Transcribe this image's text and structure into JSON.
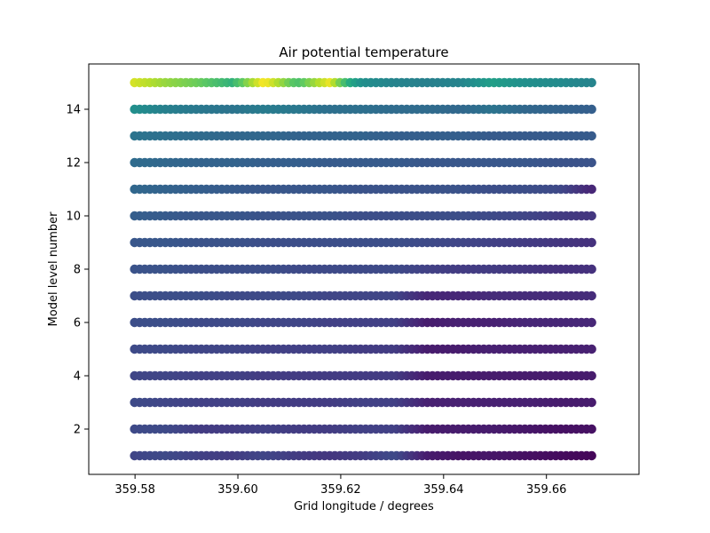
{
  "chart_data": {
    "type": "scatter",
    "title": "Air potential temperature",
    "xlabel": "Grid longitude / degrees",
    "ylabel": "Model level number",
    "xlim": [
      359.571,
      359.678
    ],
    "ylim": [
      0.3,
      15.7
    ],
    "x_ticks": [
      359.58,
      359.6,
      359.62,
      359.64,
      359.66
    ],
    "x_tick_labels": [
      "359.58",
      "359.60",
      "359.62",
      "359.64",
      "359.66"
    ],
    "y_ticks": [
      2,
      4,
      6,
      8,
      10,
      12,
      14
    ],
    "y_tick_labels": [
      "2",
      "4",
      "6",
      "8",
      "10",
      "12",
      "14"
    ],
    "grid": false,
    "colormap": "viridis",
    "x_range": [
      359.5799,
      359.6688
    ],
    "n_points_per_level": 90,
    "series": [
      {
        "level": 1,
        "x": [
          359.5799,
          359.5862,
          359.5925,
          359.5989,
          359.6052,
          359.6116,
          359.6179,
          359.6243,
          359.6306,
          359.637,
          359.6433,
          359.6497,
          359.656,
          359.6624,
          359.6688
        ],
        "color_value": [
          0.26,
          0.28,
          0.24,
          0.22,
          0.26,
          0.22,
          0.2,
          0.22,
          0.28,
          0.1,
          0.07,
          0.08,
          0.06,
          0.04,
          0.02
        ]
      },
      {
        "level": 2,
        "x": [
          359.5799,
          359.5862,
          359.5925,
          359.5989,
          359.6052,
          359.6116,
          359.6179,
          359.6243,
          359.6306,
          359.637,
          359.6433,
          359.6497,
          359.656,
          359.6624,
          359.6688
        ],
        "color_value": [
          0.28,
          0.28,
          0.22,
          0.22,
          0.24,
          0.22,
          0.22,
          0.24,
          0.24,
          0.1,
          0.1,
          0.1,
          0.08,
          0.06,
          0.06
        ]
      },
      {
        "level": 3,
        "x": [
          359.5799,
          359.5862,
          359.5925,
          359.5989,
          359.6052,
          359.6116,
          359.6179,
          359.6243,
          359.6306,
          359.637,
          359.6433,
          359.6497,
          359.656,
          359.6624,
          359.6688
        ],
        "color_value": [
          0.28,
          0.26,
          0.24,
          0.24,
          0.22,
          0.22,
          0.22,
          0.24,
          0.24,
          0.12,
          0.12,
          0.12,
          0.12,
          0.1,
          0.1
        ]
      },
      {
        "level": 4,
        "x": [
          359.5799,
          359.5862,
          359.5925,
          359.5989,
          359.6052,
          359.6116,
          359.6179,
          359.6243,
          359.6306,
          359.637,
          359.6433,
          359.6497,
          359.656,
          359.6624,
          359.6688
        ],
        "color_value": [
          0.26,
          0.26,
          0.24,
          0.24,
          0.22,
          0.22,
          0.22,
          0.22,
          0.22,
          0.1,
          0.1,
          0.1,
          0.1,
          0.1,
          0.1
        ]
      },
      {
        "level": 5,
        "x": [
          359.5799,
          359.5862,
          359.5925,
          359.5989,
          359.6052,
          359.6116,
          359.6179,
          359.6243,
          359.6306,
          359.637,
          359.6433,
          359.6497,
          359.656,
          359.6624,
          359.6688
        ],
        "color_value": [
          0.28,
          0.28,
          0.26,
          0.26,
          0.24,
          0.24,
          0.24,
          0.22,
          0.22,
          0.1,
          0.1,
          0.12,
          0.12,
          0.12,
          0.12
        ]
      },
      {
        "level": 6,
        "x": [
          359.5799,
          359.5862,
          359.5925,
          359.5989,
          359.6052,
          359.6116,
          359.6179,
          359.6243,
          359.6306,
          359.637,
          359.6433,
          359.6497,
          359.656,
          359.6624,
          359.6688
        ],
        "color_value": [
          0.3,
          0.3,
          0.28,
          0.28,
          0.26,
          0.26,
          0.24,
          0.24,
          0.24,
          0.1,
          0.12,
          0.12,
          0.14,
          0.14,
          0.14
        ]
      },
      {
        "level": 7,
        "x": [
          359.5799,
          359.5862,
          359.5925,
          359.5989,
          359.6052,
          359.6116,
          359.6179,
          359.6243,
          359.6306,
          359.637,
          359.6433,
          359.6497,
          359.656,
          359.6624,
          359.6688
        ],
        "color_value": [
          0.3,
          0.3,
          0.3,
          0.28,
          0.28,
          0.28,
          0.26,
          0.26,
          0.26,
          0.14,
          0.14,
          0.16,
          0.16,
          0.16,
          0.16
        ]
      },
      {
        "level": 8,
        "x": [
          359.5799,
          359.5862,
          359.5925,
          359.5989,
          359.6052,
          359.6116,
          359.6179,
          359.6243,
          359.6306,
          359.637,
          359.6433,
          359.6497,
          359.656,
          359.6624,
          359.6688
        ],
        "color_value": [
          0.32,
          0.32,
          0.3,
          0.3,
          0.3,
          0.28,
          0.28,
          0.28,
          0.28,
          0.24,
          0.22,
          0.22,
          0.2,
          0.18,
          0.18
        ]
      },
      {
        "level": 9,
        "x": [
          359.5799,
          359.5862,
          359.5925,
          359.5989,
          359.6052,
          359.6116,
          359.6179,
          359.6243,
          359.6306,
          359.637,
          359.6433,
          359.6497,
          359.656,
          359.6624,
          359.6688
        ],
        "color_value": [
          0.34,
          0.34,
          0.32,
          0.32,
          0.3,
          0.3,
          0.3,
          0.3,
          0.3,
          0.28,
          0.26,
          0.24,
          0.22,
          0.2,
          0.18
        ]
      },
      {
        "level": 10,
        "x": [
          359.5799,
          359.5862,
          359.5925,
          359.5989,
          359.6052,
          359.6116,
          359.6179,
          359.6243,
          359.6306,
          359.637,
          359.6433,
          359.6497,
          359.656,
          359.6624,
          359.6688
        ],
        "color_value": [
          0.38,
          0.36,
          0.34,
          0.34,
          0.32,
          0.32,
          0.32,
          0.3,
          0.3,
          0.3,
          0.3,
          0.28,
          0.26,
          0.22,
          0.2
        ]
      },
      {
        "level": 11,
        "x": [
          359.5799,
          359.5862,
          359.5925,
          359.5989,
          359.6052,
          359.6116,
          359.6179,
          359.6243,
          359.6306,
          359.637,
          359.6433,
          359.6497,
          359.656,
          359.6624,
          359.6688
        ],
        "color_value": [
          0.42,
          0.4,
          0.38,
          0.36,
          0.34,
          0.34,
          0.34,
          0.32,
          0.32,
          0.32,
          0.32,
          0.3,
          0.3,
          0.28,
          0.14
        ]
      },
      {
        "level": 12,
        "x": [
          359.5799,
          359.5862,
          359.5925,
          359.5989,
          359.6052,
          359.6116,
          359.6179,
          359.6243,
          359.6306,
          359.637,
          359.6433,
          359.6497,
          359.656,
          359.6624,
          359.6688
        ],
        "color_value": [
          0.44,
          0.42,
          0.4,
          0.4,
          0.38,
          0.38,
          0.36,
          0.36,
          0.36,
          0.34,
          0.34,
          0.34,
          0.34,
          0.32,
          0.32
        ]
      },
      {
        "level": 13,
        "x": [
          359.5799,
          359.5862,
          359.5925,
          359.5989,
          359.6052,
          359.6116,
          359.6179,
          359.6243,
          359.6306,
          359.637,
          359.6433,
          359.6497,
          359.656,
          359.6624,
          359.6688
        ],
        "color_value": [
          0.48,
          0.46,
          0.44,
          0.42,
          0.42,
          0.4,
          0.4,
          0.4,
          0.38,
          0.38,
          0.38,
          0.36,
          0.36,
          0.36,
          0.36
        ]
      },
      {
        "level": 14,
        "x": [
          359.5799,
          359.5862,
          359.5925,
          359.5989,
          359.6052,
          359.6116,
          359.6179,
          359.6243,
          359.6306,
          359.637,
          359.6433,
          359.6497,
          359.656,
          359.6624,
          359.6688
        ],
        "color_value": [
          0.62,
          0.54,
          0.5,
          0.48,
          0.52,
          0.5,
          0.46,
          0.46,
          0.44,
          0.44,
          0.42,
          0.48,
          0.42,
          0.4,
          0.38
        ]
      },
      {
        "level": 15,
        "x": [
          359.5799,
          359.5862,
          359.5925,
          359.5989,
          359.6052,
          359.6116,
          359.6179,
          359.6243,
          359.6306,
          359.637,
          359.6433,
          359.6497,
          359.656,
          359.6624,
          359.6688
        ],
        "color_value": [
          0.96,
          0.9,
          0.86,
          0.78,
          1.0,
          0.82,
          0.98,
          0.62,
          0.56,
          0.54,
          0.56,
          0.7,
          0.62,
          0.6,
          0.56
        ]
      }
    ]
  }
}
